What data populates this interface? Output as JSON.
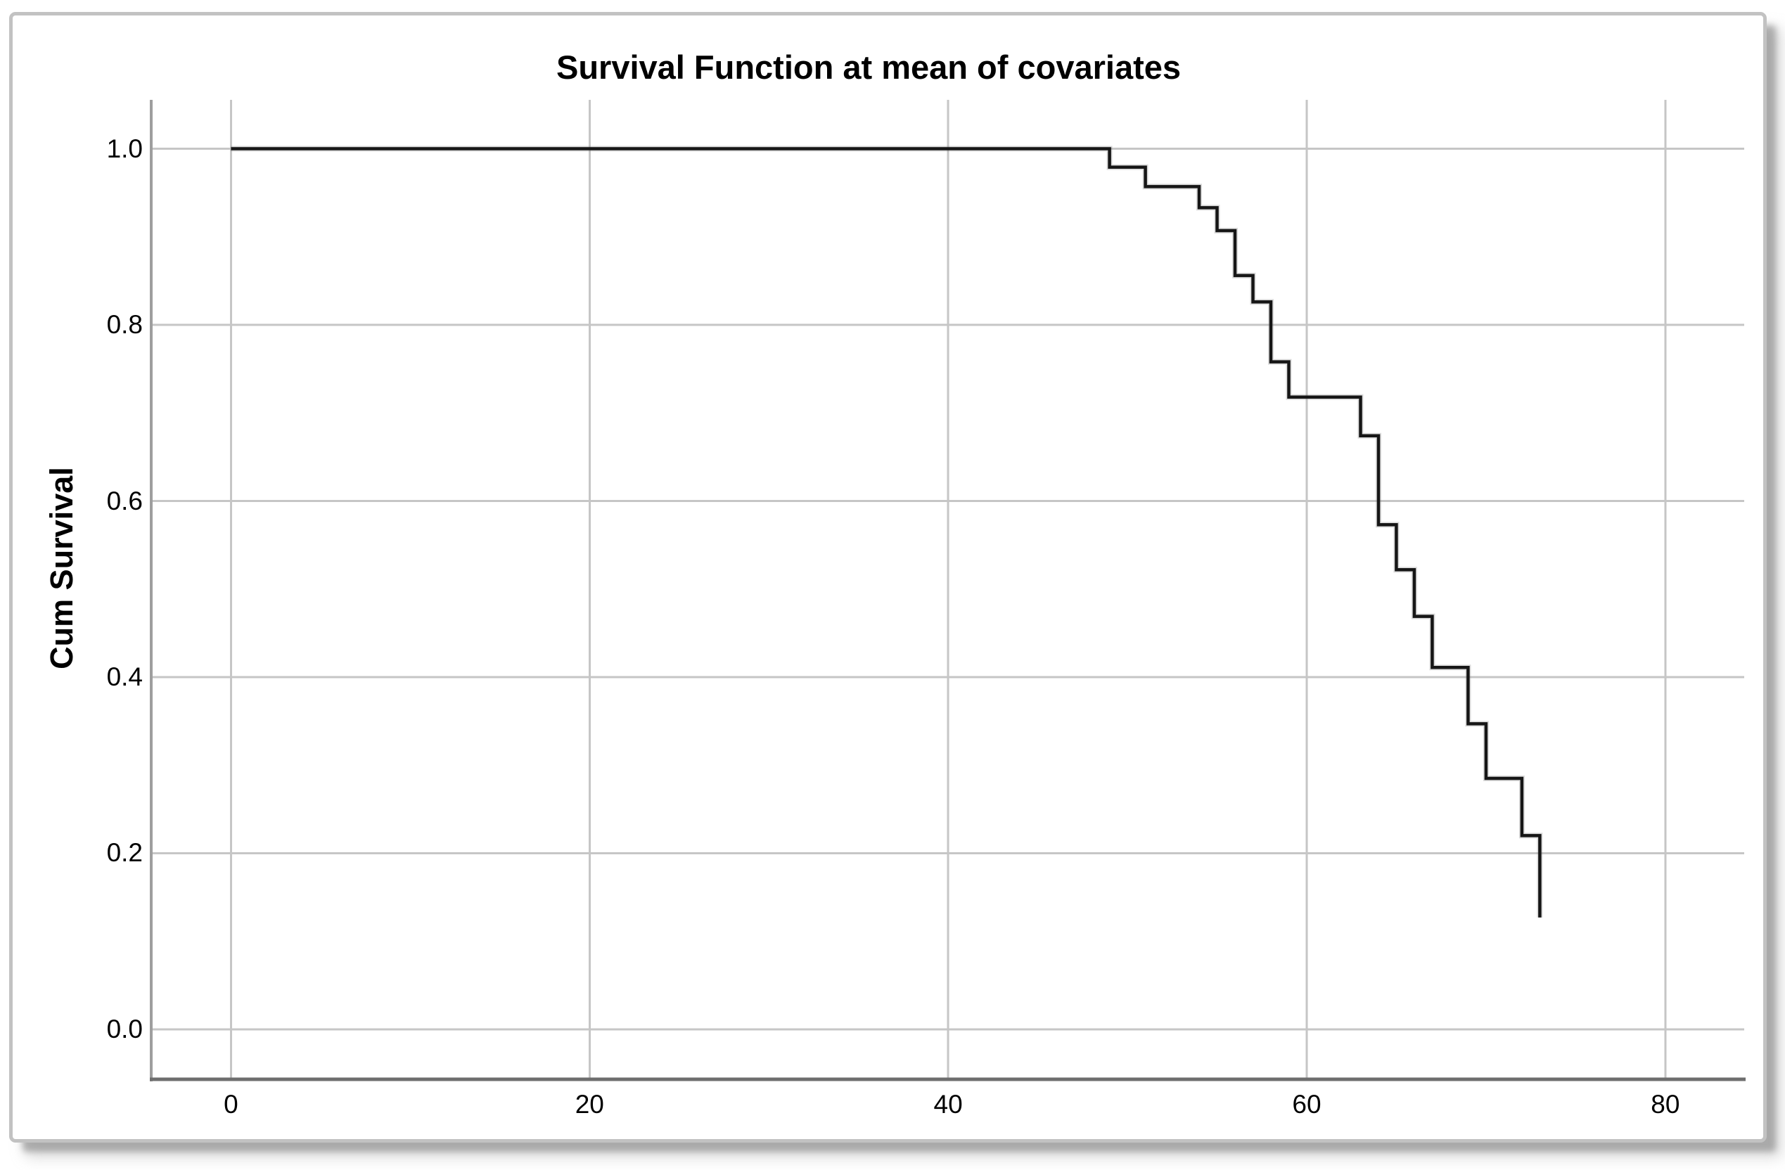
{
  "figure": {
    "title": "Survival Function at mean of covariates",
    "y_axis_title": "Cum Survival"
  },
  "colors": {
    "background": "#ffffff",
    "card_border": "#c2c2c2",
    "gridline": "#c6c6c6",
    "spine_left": "#9e9e9e",
    "spine_bottom": "#6e6e6e",
    "curve": "#161616",
    "curve_halo": "rgba(110,110,110,0.25)",
    "text": "#000000"
  },
  "chart_data": {
    "type": "line",
    "subtype": "step-post",
    "title": "Survival Function at mean of covariates",
    "xlabel": "",
    "ylabel": "Cum Survival",
    "grid": true,
    "legend": false,
    "xlim": [
      -4.45,
      84.4
    ],
    "ylim": [
      -0.0567,
      1.0555
    ],
    "xticks": [
      {
        "v": 0,
        "label": "0"
      },
      {
        "v": 20,
        "label": "20"
      },
      {
        "v": 40,
        "label": "40"
      },
      {
        "v": 60,
        "label": "60"
      },
      {
        "v": 80,
        "label": "80"
      }
    ],
    "yticks": [
      {
        "v": 0.0,
        "label": "0.0"
      },
      {
        "v": 0.2,
        "label": "0.2"
      },
      {
        "v": 0.4,
        "label": "0.4"
      },
      {
        "v": 0.6,
        "label": "0.6"
      },
      {
        "v": 0.8,
        "label": "0.8"
      },
      {
        "v": 1.0,
        "label": "1.0"
      }
    ],
    "series": [
      {
        "name": "Survival function at mean of covariates",
        "step": "post",
        "ends_with_vertical_drop": true,
        "points": [
          [
            0,
            1.0
          ],
          [
            49,
            0.979
          ],
          [
            51,
            0.957
          ],
          [
            54,
            0.933
          ],
          [
            55,
            0.907
          ],
          [
            56,
            0.856
          ],
          [
            57,
            0.826
          ],
          [
            58,
            0.758
          ],
          [
            59,
            0.718
          ],
          [
            63,
            0.674
          ],
          [
            64,
            0.573
          ],
          [
            65,
            0.522
          ],
          [
            66,
            0.469
          ],
          [
            67,
            0.411
          ],
          [
            69,
            0.347
          ],
          [
            70,
            0.285
          ],
          [
            72,
            0.22
          ],
          [
            73,
            0.127
          ]
        ]
      }
    ]
  }
}
